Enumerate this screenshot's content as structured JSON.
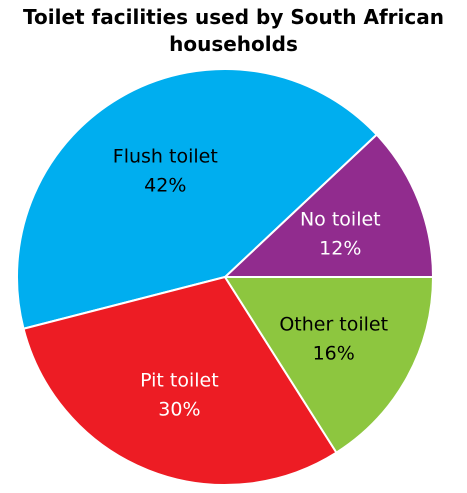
{
  "chart_data": {
    "type": "pie",
    "title_lines": [
      "Toilet facilities used by South African",
      "households"
    ],
    "categories": [
      "No toilet",
      "Flush toilet",
      "Pit toilet",
      "Other toilet"
    ],
    "values": [
      12,
      42,
      30,
      16
    ],
    "value_labels": [
      "12%",
      "42%",
      "30%",
      "16%"
    ],
    "unit": "%",
    "colors": [
      "#912c8e",
      "#00aeef",
      "#ed1c24",
      "#8dc63f"
    ],
    "label_colors": [
      "#ffffff",
      "#000000",
      "#ffffff",
      "#000000"
    ],
    "legend": "none",
    "start_angle_deg": 0,
    "direction": "counterclockwise"
  }
}
